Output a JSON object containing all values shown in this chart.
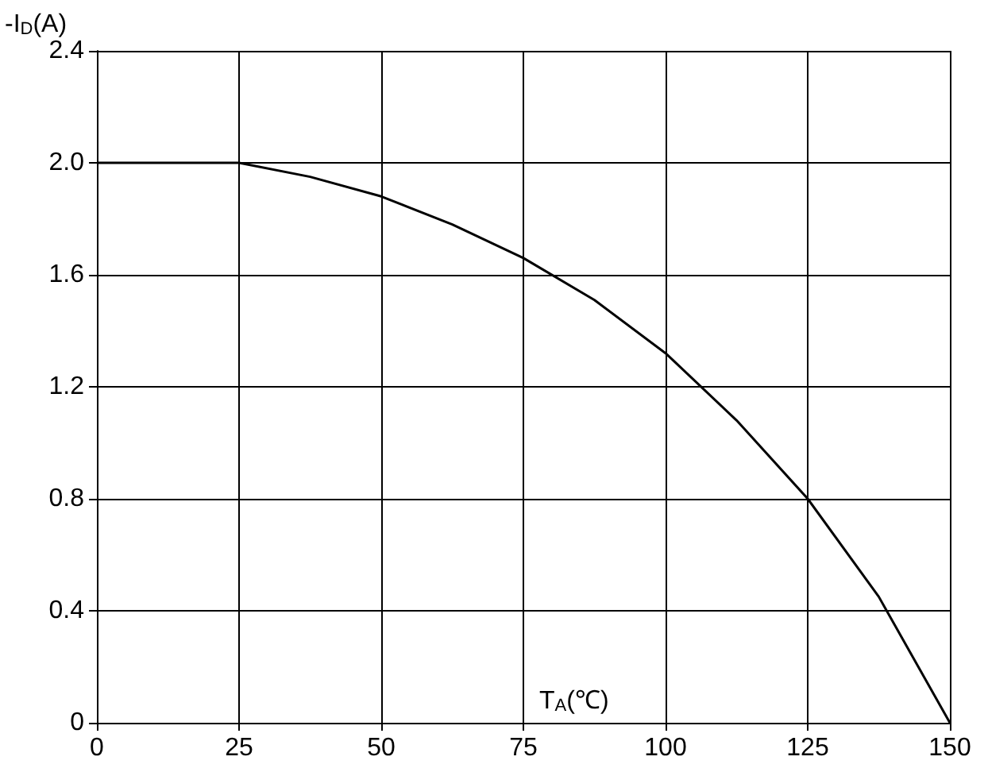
{
  "chart_data": {
    "type": "line",
    "xlabel": "T$_{A}$(℃)",
    "ylabel": "-I$_{D}$(A)",
    "x": [
      0,
      25,
      37.5,
      50,
      62.5,
      75,
      87.5,
      100,
      112.5,
      125,
      137.5,
      150
    ],
    "series": [
      {
        "color": "#000000",
        "values": [
          2.0,
          2.0,
          1.95,
          1.88,
          1.78,
          1.66,
          1.51,
          1.32,
          1.08,
          0.8,
          0.45,
          0
        ]
      }
    ],
    "xlim": [
      0,
      150
    ],
    "xticks": [
      0,
      25,
      50,
      75,
      100,
      125,
      150
    ],
    "ylim": [
      0,
      2.4
    ],
    "yticks": [
      0,
      0.4,
      0.8,
      1.2,
      1.6,
      {
        "value": 2,
        "label": "2.0"
      },
      2.4
    ],
    "grid": true,
    "marker": "none",
    "line_style": "solid"
  }
}
